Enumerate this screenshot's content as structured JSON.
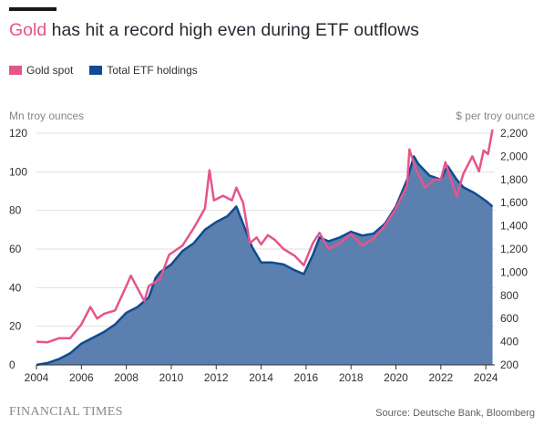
{
  "title": {
    "highlight": "Gold",
    "rest": " has hit a record high even during ETF outflows"
  },
  "legend": [
    {
      "label": "Gold spot",
      "color": "#e6548c"
    },
    {
      "label": "Total ETF holdings",
      "color": "#0f4c92"
    }
  ],
  "left_axis_label": "Mn troy ounces",
  "right_axis_label": "$ per troy ounce",
  "footer": {
    "brand": "FINANCIAL TIMES",
    "source": "Source: Deutsche Bank, Bloomberg"
  },
  "chart_data": {
    "type": "area",
    "x_ticks": [
      "2004",
      "2006",
      "2008",
      "2010",
      "2012",
      "2014",
      "2016",
      "2018",
      "2020",
      "2022",
      "2024"
    ],
    "y_left": {
      "range": [
        0,
        120
      ],
      "ticks": [
        "0",
        "20",
        "40",
        "60",
        "80",
        "100",
        "120"
      ]
    },
    "y_right": {
      "range": [
        200,
        2200
      ],
      "ticks": [
        "200",
        "400",
        "600",
        "800",
        "1,000",
        "1,200",
        "1,400",
        "1,600",
        "1,800",
        "2,000",
        "2,200"
      ]
    },
    "grid": true,
    "series": [
      {
        "name": "Total ETF holdings",
        "axis": "left",
        "color": "#0f4c92",
        "fill": "#5b7fae",
        "points": [
          [
            2004.0,
            0
          ],
          [
            2004.5,
            1
          ],
          [
            2005.0,
            3
          ],
          [
            2005.5,
            6
          ],
          [
            2006.0,
            11
          ],
          [
            2006.5,
            14
          ],
          [
            2007.0,
            17
          ],
          [
            2007.5,
            21
          ],
          [
            2008.0,
            27
          ],
          [
            2008.5,
            30
          ],
          [
            2009.0,
            35
          ],
          [
            2009.3,
            45
          ],
          [
            2009.5,
            48
          ],
          [
            2010.0,
            52
          ],
          [
            2010.5,
            59
          ],
          [
            2011.0,
            63
          ],
          [
            2011.5,
            70
          ],
          [
            2012.0,
            74
          ],
          [
            2012.5,
            77
          ],
          [
            2012.9,
            82
          ],
          [
            2013.0,
            79
          ],
          [
            2013.3,
            70
          ],
          [
            2013.6,
            61
          ],
          [
            2014.0,
            53
          ],
          [
            2014.5,
            53
          ],
          [
            2015.0,
            52
          ],
          [
            2015.5,
            49
          ],
          [
            2015.9,
            47
          ],
          [
            2016.3,
            57
          ],
          [
            2016.6,
            66
          ],
          [
            2017.0,
            64
          ],
          [
            2017.5,
            66
          ],
          [
            2018.0,
            69
          ],
          [
            2018.5,
            67
          ],
          [
            2019.0,
            68
          ],
          [
            2019.5,
            73
          ],
          [
            2020.0,
            82
          ],
          [
            2020.5,
            96
          ],
          [
            2020.8,
            108
          ],
          [
            2021.0,
            104
          ],
          [
            2021.5,
            98
          ],
          [
            2022.0,
            96
          ],
          [
            2022.3,
            103
          ],
          [
            2022.7,
            96
          ],
          [
            2023.0,
            92
          ],
          [
            2023.5,
            89
          ],
          [
            2024.0,
            85
          ],
          [
            2024.3,
            82
          ]
        ]
      },
      {
        "name": "Gold spot",
        "axis": "right",
        "color": "#e6548c",
        "points": [
          [
            2004.0,
            400
          ],
          [
            2004.5,
            395
          ],
          [
            2005.0,
            430
          ],
          [
            2005.5,
            430
          ],
          [
            2006.0,
            550
          ],
          [
            2006.4,
            700
          ],
          [
            2006.7,
            600
          ],
          [
            2007.0,
            640
          ],
          [
            2007.5,
            670
          ],
          [
            2008.0,
            880
          ],
          [
            2008.2,
            970
          ],
          [
            2008.8,
            750
          ],
          [
            2009.0,
            880
          ],
          [
            2009.5,
            940
          ],
          [
            2009.9,
            1150
          ],
          [
            2010.5,
            1230
          ],
          [
            2011.0,
            1380
          ],
          [
            2011.5,
            1550
          ],
          [
            2011.7,
            1880
          ],
          [
            2011.9,
            1620
          ],
          [
            2012.3,
            1660
          ],
          [
            2012.7,
            1620
          ],
          [
            2012.9,
            1730
          ],
          [
            2013.2,
            1600
          ],
          [
            2013.5,
            1250
          ],
          [
            2013.8,
            1300
          ],
          [
            2014.0,
            1240
          ],
          [
            2014.3,
            1320
          ],
          [
            2014.6,
            1280
          ],
          [
            2015.0,
            1200
          ],
          [
            2015.5,
            1140
          ],
          [
            2015.9,
            1060
          ],
          [
            2016.3,
            1250
          ],
          [
            2016.6,
            1340
          ],
          [
            2017.0,
            1200
          ],
          [
            2017.5,
            1250
          ],
          [
            2018.0,
            1330
          ],
          [
            2018.5,
            1230
          ],
          [
            2019.0,
            1290
          ],
          [
            2019.5,
            1400
          ],
          [
            2020.0,
            1550
          ],
          [
            2020.5,
            1750
          ],
          [
            2020.6,
            2060
          ],
          [
            2020.9,
            1880
          ],
          [
            2021.3,
            1730
          ],
          [
            2021.7,
            1800
          ],
          [
            2022.0,
            1800
          ],
          [
            2022.2,
            1950
          ],
          [
            2022.7,
            1650
          ],
          [
            2023.0,
            1850
          ],
          [
            2023.4,
            2000
          ],
          [
            2023.7,
            1870
          ],
          [
            2023.9,
            2050
          ],
          [
            2024.1,
            2020
          ],
          [
            2024.3,
            2370
          ]
        ]
      }
    ]
  }
}
